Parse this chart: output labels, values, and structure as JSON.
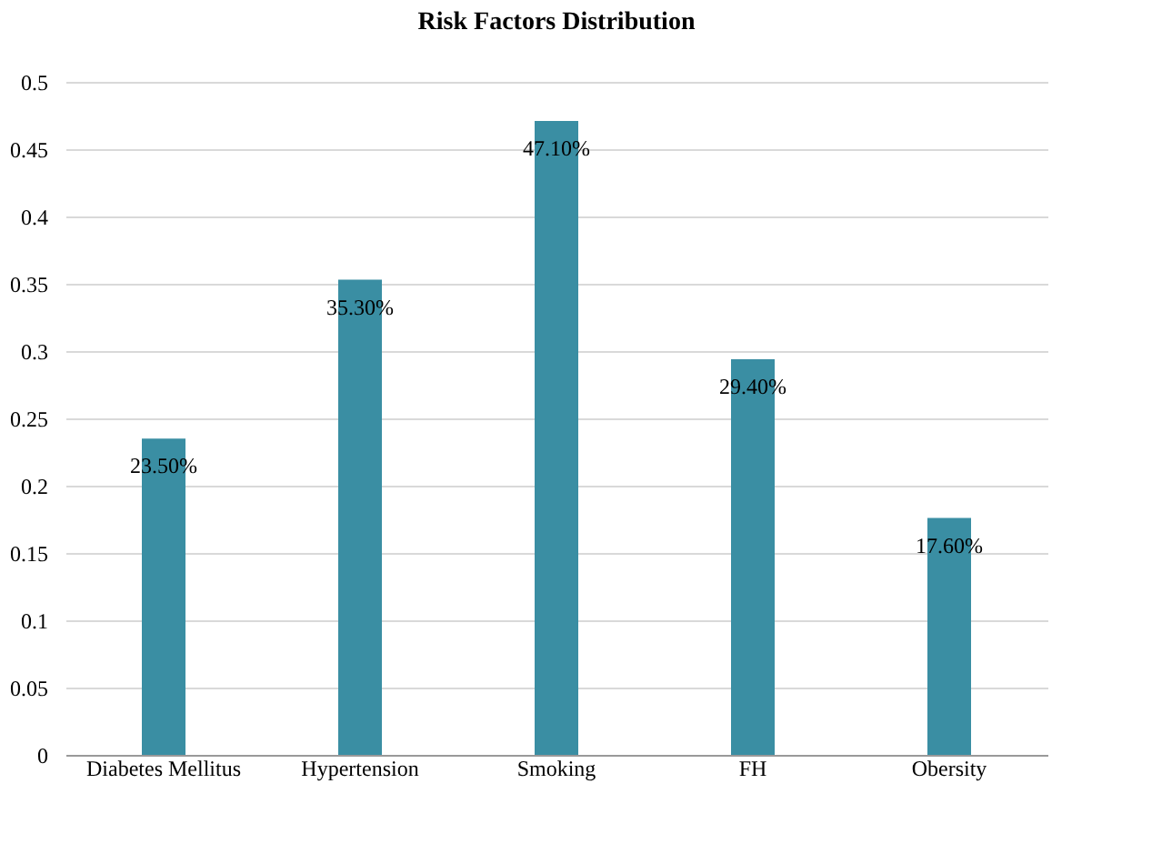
{
  "chart_data": {
    "type": "bar",
    "title": "Risk Factors Distribution",
    "categories": [
      "Diabetes Mellitus",
      "Hypertension",
      "Smoking",
      "FH",
      "Obersity"
    ],
    "values": [
      0.235,
      0.353,
      0.471,
      0.294,
      0.176
    ],
    "value_labels": [
      "23.50%",
      "35.30%",
      "47.10%",
      "29.40%",
      "17.60%"
    ],
    "color": "#3a8ea3",
    "ylim": [
      0,
      0.5
    ],
    "yticks": [
      0,
      0.05,
      0.1,
      0.15,
      0.2,
      0.25,
      0.3,
      0.35,
      0.4,
      0.45,
      0.5
    ],
    "grid": "y"
  }
}
